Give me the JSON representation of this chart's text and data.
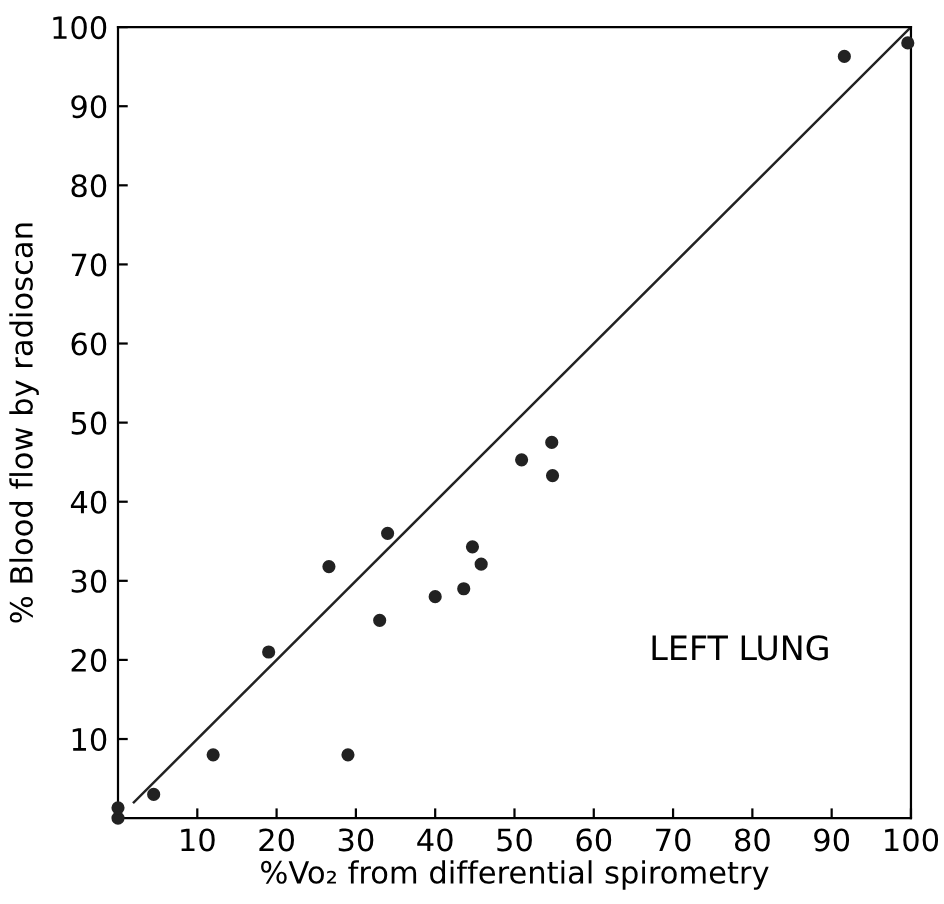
{
  "chart_data": {
    "type": "scatter",
    "xlabel": "%Vo₂ from differential spirometry",
    "ylabel": "% Blood flow by radioscan",
    "annotations": [
      "LEFT LUNG"
    ],
    "xlim": [
      0,
      100
    ],
    "ylim": [
      0,
      100
    ],
    "xticks": [
      10,
      20,
      30,
      40,
      50,
      60,
      70,
      80,
      90,
      100
    ],
    "yticks": [
      10,
      20,
      30,
      40,
      50,
      60,
      70,
      80,
      90,
      100
    ],
    "grid": false,
    "legend": false,
    "marker": "circle",
    "series": [
      {
        "color": "#222222",
        "x": [
          0,
          0,
          4.5,
          12,
          19,
          26.6,
          29,
          33,
          34,
          40,
          43.6,
          44.7,
          45.8,
          50.9,
          54.7,
          54.8,
          91.6,
          99.6
        ],
        "values": [
          0,
          1.3,
          3,
          8,
          21,
          31.8,
          8,
          25,
          36,
          28,
          29,
          34.3,
          32.1,
          45.3,
          47.5,
          43.3,
          96.3,
          98
        ]
      },
      {
        "type": "line",
        "color": "#222222",
        "x": [
          2,
          100
        ],
        "values": [
          2,
          100
        ],
        "marker": "none",
        "line_style": "solid"
      }
    ]
  }
}
